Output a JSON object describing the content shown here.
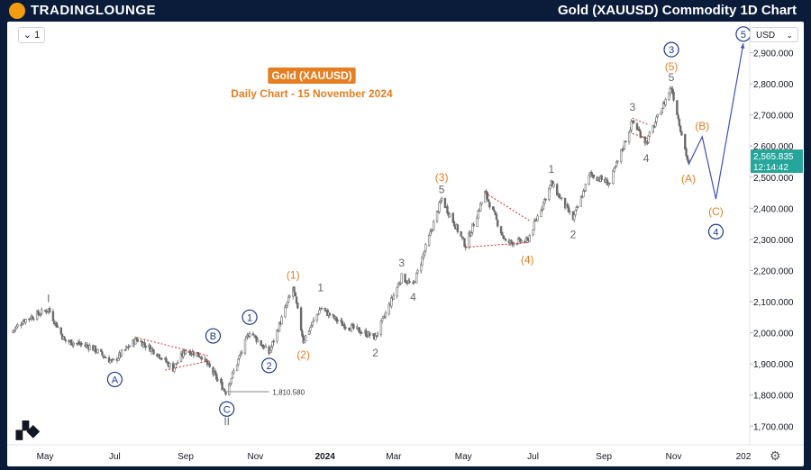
{
  "header": {
    "logo_text": "TRADINGLOUNGE",
    "title": "Gold (XAUUSD) Commodity 1D Chart"
  },
  "toolbar": {
    "interval": "1",
    "currency": "USD"
  },
  "chart_data": {
    "type": "candlestick",
    "title": "Gold (XAUUSD)",
    "subtitle": "Daily Chart - 15 November 2024",
    "ylabel": "USD",
    "ylim": [
      1640,
      3000
    ],
    "xlim": [
      "2023-04-01",
      "2025-01-05"
    ],
    "y_ticks": [
      1700,
      1800,
      1900,
      2000,
      2100,
      2200,
      2300,
      2400,
      2500,
      2600,
      2700,
      2800,
      2900
    ],
    "y_tick_labels": [
      "1,700.000",
      "1,800.000",
      "1,900.000",
      "2,000.000",
      "2,100.000",
      "2,200.000",
      "2,300.000",
      "2,400.000",
      "2,500.000",
      "2,600.000",
      "2,700.000",
      "2,800.000",
      "2,900.000"
    ],
    "x_ticks": [
      {
        "label": "May",
        "date": "2023-05-01"
      },
      {
        "label": "Jul",
        "date": "2023-07-01"
      },
      {
        "label": "Sep",
        "date": "2023-09-01"
      },
      {
        "label": "Nov",
        "date": "2023-11-01"
      },
      {
        "label": "2024",
        "date": "2024-01-01"
      },
      {
        "label": "Mar",
        "date": "2024-03-01"
      },
      {
        "label": "May",
        "date": "2024-05-01"
      },
      {
        "label": "Jul",
        "date": "2024-07-01"
      },
      {
        "label": "Sep",
        "date": "2024-09-01"
      },
      {
        "label": "Nov",
        "date": "2024-11-01"
      },
      {
        "label": "202",
        "date": "2025-01-01"
      }
    ],
    "price_path": [
      [
        "2023-04-01",
        2000
      ],
      [
        "2023-04-12",
        2040
      ],
      [
        "2023-05-04",
        2075
      ],
      [
        "2023-05-18",
        1975
      ],
      [
        "2023-06-10",
        1955
      ],
      [
        "2023-06-29",
        1905
      ],
      [
        "2023-07-20",
        1980
      ],
      [
        "2023-08-07",
        1935
      ],
      [
        "2023-08-21",
        1885
      ],
      [
        "2023-09-01",
        1945
      ],
      [
        "2023-09-15",
        1925
      ],
      [
        "2023-10-06",
        1810
      ],
      [
        "2023-10-27",
        2005
      ],
      [
        "2023-11-13",
        1935
      ],
      [
        "2023-12-04",
        2145
      ],
      [
        "2023-12-13",
        1975
      ],
      [
        "2023-12-28",
        2080
      ],
      [
        "2024-01-15",
        2030
      ],
      [
        "2024-02-14",
        1985
      ],
      [
        "2024-03-08",
        2180
      ],
      [
        "2024-03-18",
        2150
      ],
      [
        "2024-04-12",
        2430
      ],
      [
        "2024-05-03",
        2280
      ],
      [
        "2024-05-20",
        2450
      ],
      [
        "2024-06-07",
        2290
      ],
      [
        "2024-06-26",
        2295
      ],
      [
        "2024-07-17",
        2480
      ],
      [
        "2024-08-05",
        2365
      ],
      [
        "2024-08-20",
        2510
      ],
      [
        "2024-09-06",
        2480
      ],
      [
        "2024-09-26",
        2680
      ],
      [
        "2024-10-08",
        2610
      ],
      [
        "2024-10-30",
        2790
      ],
      [
        "2024-11-14",
        2540
      ]
    ],
    "current_price": {
      "label": "2,565.835",
      "value": 2565.835,
      "countdown": "12:14:42"
    },
    "low_marker": {
      "label": "1,810.580",
      "value": 1810.58,
      "date": "2023-10-06"
    },
    "projection": [
      [
        "2024-11-14",
        2540
      ],
      [
        "2024-11-26",
        2630
      ],
      [
        "2024-12-08",
        2430
      ],
      [
        "2025-01-01",
        2930
      ]
    ],
    "wave_labels": [
      {
        "text": "A",
        "date": "2023-07-01",
        "price": 1850,
        "style": "circle",
        "color": "#1e3a8a"
      },
      {
        "text": "B",
        "date": "2023-09-25",
        "price": 1990,
        "style": "circle",
        "color": "#1e3a8a"
      },
      {
        "text": "C",
        "date": "2023-10-07",
        "price": 1755,
        "style": "circle",
        "color": "#1e3a8a"
      },
      {
        "text": "II",
        "date": "2023-10-07",
        "price": 1715,
        "style": "plain",
        "color": "#666666"
      },
      {
        "text": "I",
        "date": "2023-05-04",
        "price": 2110,
        "style": "plain",
        "color": "#666666"
      },
      {
        "text": "1",
        "date": "2023-10-27",
        "price": 2050,
        "style": "circle",
        "color": "#1e3a8a"
      },
      {
        "text": "2",
        "date": "2023-11-13",
        "price": 1895,
        "style": "circle",
        "color": "#1e3a8a"
      },
      {
        "text": "(1)",
        "date": "2023-12-04",
        "price": 2185,
        "style": "plain",
        "color": "#e67e22"
      },
      {
        "text": "(2)",
        "date": "2023-12-13",
        "price": 1930,
        "style": "plain",
        "color": "#e67e22"
      },
      {
        "text": "1",
        "date": "2023-12-28",
        "price": 2145,
        "style": "plain",
        "color": "#666666"
      },
      {
        "text": "2",
        "date": "2024-02-14",
        "price": 1935,
        "style": "plain",
        "color": "#666666"
      },
      {
        "text": "3",
        "date": "2024-03-08",
        "price": 2225,
        "style": "plain",
        "color": "#666666"
      },
      {
        "text": "4",
        "date": "2024-03-18",
        "price": 2115,
        "style": "plain",
        "color": "#666666"
      },
      {
        "text": "(3)",
        "date": "2024-04-12",
        "price": 2500,
        "style": "plain",
        "color": "#e67e22"
      },
      {
        "text": "5",
        "date": "2024-04-12",
        "price": 2460,
        "style": "plain",
        "color": "#666666"
      },
      {
        "text": "(4)",
        "date": "2024-06-26",
        "price": 2235,
        "style": "plain",
        "color": "#e67e22"
      },
      {
        "text": "1",
        "date": "2024-07-17",
        "price": 2525,
        "style": "plain",
        "color": "#666666"
      },
      {
        "text": "2",
        "date": "2024-08-05",
        "price": 2315,
        "style": "plain",
        "color": "#666666"
      },
      {
        "text": "3",
        "date": "2024-09-26",
        "price": 2725,
        "style": "plain",
        "color": "#666666"
      },
      {
        "text": "4",
        "date": "2024-10-08",
        "price": 2560,
        "style": "plain",
        "color": "#666666"
      },
      {
        "text": "5",
        "date": "2024-10-30",
        "price": 2820,
        "style": "plain",
        "color": "#666666"
      },
      {
        "text": "(5)",
        "date": "2024-10-30",
        "price": 2855,
        "style": "plain",
        "color": "#e67e22"
      },
      {
        "text": "3",
        "date": "2024-10-30",
        "price": 2910,
        "style": "circle",
        "color": "#1e3a8a"
      },
      {
        "text": "(A)",
        "date": "2024-11-14",
        "price": 2495,
        "style": "plain",
        "color": "#e67e22"
      },
      {
        "text": "(B)",
        "date": "2024-11-26",
        "price": 2665,
        "style": "plain",
        "color": "#e67e22"
      },
      {
        "text": "(C)",
        "date": "2024-12-08",
        "price": 2390,
        "style": "plain",
        "color": "#e67e22"
      },
      {
        "text": "4",
        "date": "2024-12-08",
        "price": 2325,
        "style": "circle",
        "color": "#1e3a8a"
      },
      {
        "text": "5",
        "date": "2025-01-01",
        "price": 2960,
        "style": "circle",
        "color": "#1e3a8a"
      }
    ],
    "triangles": [
      {
        "upper": [
          [
            "2023-07-20",
            1985
          ],
          [
            "2023-09-22",
            1925
          ]
        ],
        "lower": [
          [
            "2023-08-14",
            1880
          ],
          [
            "2023-09-22",
            1910
          ]
        ]
      },
      {
        "upper": [
          [
            "2024-05-20",
            2450
          ],
          [
            "2024-06-28",
            2360
          ]
        ],
        "lower": [
          [
            "2024-05-03",
            2275
          ],
          [
            "2024-06-28",
            2290
          ]
        ]
      },
      {
        "upper": [
          [
            "2024-09-26",
            2690
          ],
          [
            "2024-10-09",
            2670
          ]
        ],
        "lower": [
          [
            "2024-09-26",
            2640
          ],
          [
            "2024-10-09",
            2625
          ]
        ]
      }
    ],
    "colors": {
      "up": "#26a69a",
      "down": "#ef5350",
      "candle": "#6b6b6b",
      "wave_blue": "#1e3a8a",
      "wave_orange": "#e67e22",
      "price_tag": "#26a69a",
      "projection": "#3f51b5"
    }
  }
}
